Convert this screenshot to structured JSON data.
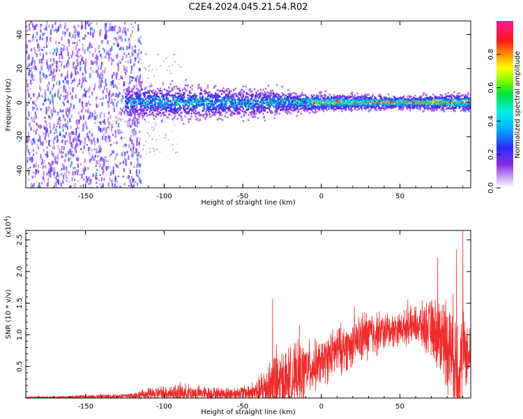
{
  "title": "C2E4.2024.045.21.54.R02",
  "chart_data": [
    {
      "type": "heatmap",
      "xlabel": "Height of straight line (km)",
      "ylabel": "Frequency (Hz)",
      "xlim": [
        -188,
        95
      ],
      "ylim": [
        -50,
        48
      ],
      "xticks": [
        -150,
        -100,
        -50,
        0,
        50
      ],
      "yticks": [
        -40,
        -20,
        0,
        20,
        40
      ],
      "colorbar": {
        "label": "Normalized spectral amplitude",
        "range": [
          0,
          1
        ],
        "ticks": [
          0.0,
          0.2,
          0.4,
          0.6,
          0.8
        ],
        "tick_labels": [
          "0.0",
          "0.2",
          "0.4",
          "0.6",
          "0.8"
        ],
        "colormap": "rainbow (white-purple-blue-cyan-green-yellow-red-magenta)"
      },
      "description_points": {
        "center_frequency_hz": 0,
        "scatter_region_x": [
          -188,
          -125
        ],
        "core_band_x": [
          -125,
          95
        ],
        "band_halfwidth_hz_at": [
          {
            "x": -120,
            "hz": 8
          },
          {
            "x": -50,
            "hz": 7
          },
          {
            "x": 0,
            "hz": 4
          },
          {
            "x": 50,
            "hz": 3
          },
          {
            "x": 90,
            "hz": 4
          }
        ],
        "peak_amplitude_region_x": [
          -10,
          95
        ]
      }
    },
    {
      "type": "line",
      "xlabel": "Height of straight line (km)",
      "ylabel": "SNR (10 * v/v)",
      "y_multiplier_label": "(x10",
      "y_multiplier_exp": "4",
      "y_multiplier_close": ")",
      "xlim": [
        -188,
        95
      ],
      "ylim": [
        0,
        2.65
      ],
      "xticks": [
        -150,
        -100,
        -50,
        0,
        50
      ],
      "yticks": [
        0.5,
        1.0,
        1.5,
        2.0,
        2.5
      ],
      "ytick_labels": [
        "0.5",
        "1.0",
        "1.5",
        "2.0",
        "2.5"
      ],
      "color": "#ee2b2b",
      "envelope": {
        "x": [
          -188,
          -170,
          -150,
          -130,
          -120,
          -110,
          -100,
          -90,
          -80,
          -70,
          -60,
          -50,
          -40,
          -35,
          -30,
          -20,
          -15,
          -10,
          -5,
          0,
          10,
          20,
          25,
          30,
          40,
          50,
          60,
          70,
          80,
          85,
          88,
          90,
          95
        ],
        "baseline": [
          0.01,
          0.01,
          0.02,
          0.03,
          0.04,
          0.06,
          0.08,
          0.08,
          0.08,
          0.07,
          0.07,
          0.08,
          0.1,
          0.15,
          0.2,
          0.3,
          0.35,
          0.45,
          0.5,
          0.55,
          0.75,
          0.85,
          0.95,
          1.0,
          1.05,
          1.1,
          1.15,
          1.1,
          0.9,
          0.6,
          0.4,
          0.8,
          0.6
        ],
        "spread": [
          0.01,
          0.02,
          0.03,
          0.04,
          0.05,
          0.1,
          0.12,
          0.15,
          0.12,
          0.1,
          0.1,
          0.12,
          0.2,
          0.5,
          0.6,
          0.5,
          0.5,
          0.45,
          0.4,
          0.35,
          0.4,
          0.35,
          0.4,
          0.4,
          0.3,
          0.25,
          0.3,
          0.45,
          0.75,
          0.9,
          1.0,
          0.6,
          0.5
        ]
      },
      "notable_peaks": [
        {
          "x": -31,
          "y": 1.57
        },
        {
          "x": -14,
          "y": 1.15
        },
        {
          "x": 21,
          "y": 1.45
        },
        {
          "x": 55,
          "y": 1.56
        },
        {
          "x": 74,
          "y": 2.22
        },
        {
          "x": 86,
          "y": 2.35
        },
        {
          "x": 90,
          "y": 2.65
        }
      ]
    }
  ]
}
